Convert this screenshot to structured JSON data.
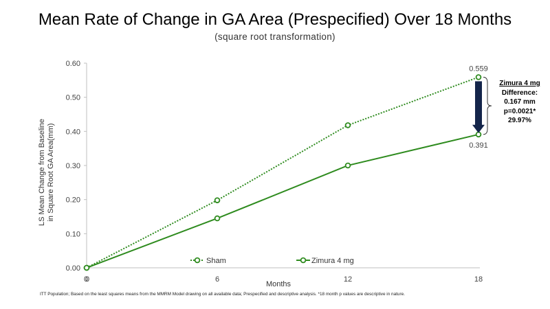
{
  "chart_data": {
    "type": "line",
    "title": "Mean Rate of Change in GA Area (Prespecified) Over 18 Months",
    "subtitle": "(square root transformation)",
    "xlabel": "Months",
    "ylabel": "LS Mean Change from Baseline in Square Root GA Area(mm)",
    "x": [
      0,
      6,
      12,
      18
    ],
    "x_tick_labels": [
      "0",
      "0",
      "6",
      "12",
      "18"
    ],
    "y_ticks": [
      "0.00",
      "0.10",
      "0.20",
      "0.30",
      "0.40",
      "0.50",
      "0.60"
    ],
    "ylim": [
      0,
      0.6
    ],
    "xlim": [
      0,
      18
    ],
    "grid": false,
    "legend_position": "bottom",
    "series": [
      {
        "name": "Sham",
        "style": "dotted",
        "color": "#2e8b1e",
        "values": [
          0.0,
          0.198,
          0.418,
          0.559
        ]
      },
      {
        "name": "Zimura 4 mg",
        "style": "solid",
        "color": "#2e8b1e",
        "values": [
          0.0,
          0.145,
          0.3,
          0.391
        ]
      }
    ],
    "data_labels": {
      "sham_end": "0.559",
      "zimura_end": "0.391"
    },
    "callout": {
      "header": "Zimura 4 mg",
      "lines": [
        "Difference:",
        "0.167 mm",
        "p=0.0021*",
        "29.97%"
      ]
    },
    "footnote": "ITT Population;  Based on the least squares means from the  MMRM Model drawing on all available data; Prespecified  and descriptive analysis. *18 month  p values are descriptive  in nature."
  }
}
